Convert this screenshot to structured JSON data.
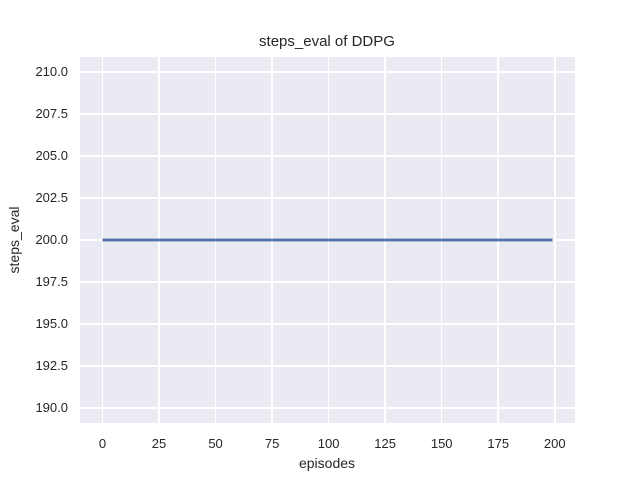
{
  "chart_data": {
    "type": "line",
    "title": "steps_eval of DDPG",
    "xlabel": "episodes",
    "ylabel": "steps_eval",
    "series": [
      {
        "name": "steps_eval",
        "color": "#4C72B0",
        "x": [
          0,
          199
        ],
        "y": [
          200,
          200
        ],
        "note": "constant line at 200 for all 200 episodes"
      }
    ],
    "xlim": [
      -9.95,
      208.95
    ],
    "ylim": [
      189.1,
      210.9
    ],
    "xticks": {
      "values": [
        0,
        25,
        50,
        75,
        100,
        125,
        150,
        175,
        200
      ],
      "labels": [
        "0",
        "25",
        "50",
        "75",
        "100",
        "125",
        "150",
        "175",
        "200"
      ]
    },
    "yticks": {
      "values": [
        190.0,
        192.5,
        195.0,
        197.5,
        200.0,
        202.5,
        205.0,
        207.5,
        210.0
      ],
      "labels": [
        "190.0",
        "192.5",
        "195.0",
        "197.5",
        "200.0",
        "202.5",
        "205.0",
        "207.5",
        "210.0"
      ]
    },
    "grid": true,
    "legend": null,
    "style": {
      "fig_bg": "#ffffff",
      "axes_bg": "#EAEAF2",
      "grid_color": "#ffffff",
      "text_color": "#262626",
      "line_width": 2.7
    }
  }
}
